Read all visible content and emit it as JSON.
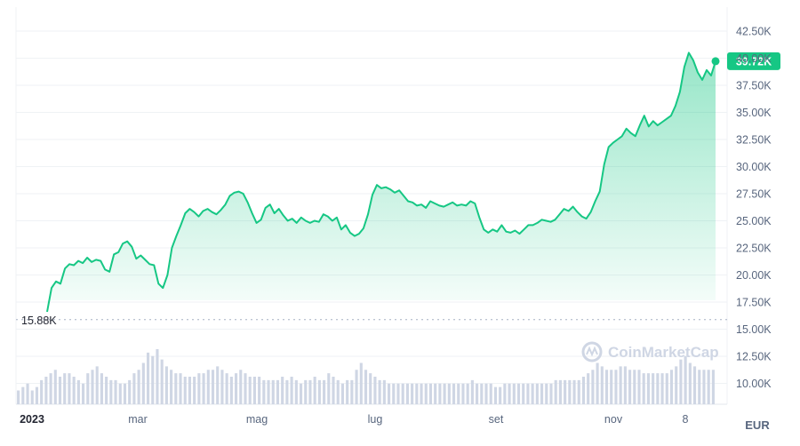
{
  "watermark": "CoinMarketCap",
  "currency": "EUR",
  "colors": {
    "line": "#16c784",
    "volume": "#cfd6e4",
    "baseline": "#a6b0c3",
    "grid": "#eff2f5",
    "badge": "#16c784"
  },
  "chart_data": {
    "type": "area",
    "x_tick_labels": [
      "2023",
      "mar",
      "mag",
      "lug",
      "set",
      "nov",
      "8"
    ],
    "y_tick_labels": [
      "42.50K",
      "40.00K",
      "37.50K",
      "35.00K",
      "32.50K",
      "30.00K",
      "27.50K",
      "25.00K",
      "22.50K",
      "20.00K",
      "17.50K",
      "15.00K",
      "12.50K",
      "10.00K"
    ],
    "ylim": [
      8000,
      44000
    ],
    "baseline": {
      "value": 15880,
      "label": "15.88K"
    },
    "last_price": {
      "value": 39720,
      "label": "39.72K"
    },
    "series": [
      {
        "values": [
          16600,
          18800,
          19400,
          19200,
          20600,
          21000,
          20900,
          21300,
          21100,
          21600,
          21200,
          21400,
          21300,
          20500,
          20300,
          21900,
          22100,
          22900,
          23100,
          22600,
          21500,
          21800,
          21400,
          21000,
          20900,
          19200,
          18800,
          20000,
          22500,
          23600,
          24600,
          25700,
          26100,
          25800,
          25400,
          25900,
          26100,
          25800,
          25600,
          26000,
          26500,
          27300,
          27600,
          27700,
          27500,
          26700,
          25700,
          24800,
          25100,
          26200,
          26500,
          25700,
          26100,
          25500,
          25000,
          25200,
          24800,
          25300,
          25000,
          24800,
          25000,
          24900,
          25600,
          25400,
          25000,
          25300,
          24200,
          24600,
          23900,
          23600,
          23800,
          24300,
          25600,
          27400,
          28300,
          28000,
          28100,
          27900,
          27600,
          27800,
          27300,
          26800,
          26700,
          26400,
          26500,
          26200,
          26800,
          26600,
          26400,
          26300,
          26500,
          26700,
          26400,
          26500,
          26400,
          26800,
          26600,
          25300,
          24200,
          23900,
          24200,
          24000,
          24600,
          24000,
          23900,
          24100,
          23800,
          24200,
          24600,
          24600,
          24800,
          25100,
          25000,
          24900,
          25100,
          25600,
          26100,
          25900,
          26300,
          25800,
          25400,
          25200,
          25800,
          26800,
          27700,
          30200,
          31800,
          32200,
          32500,
          32800,
          33500,
          33100,
          32800,
          33800,
          34700,
          33700,
          34200,
          33800,
          34100,
          34400,
          34700,
          35600,
          36900,
          39200,
          40500,
          39800,
          38700,
          38000,
          38900,
          38400,
          39720
        ]
      }
    ],
    "volume": [
      4,
      5,
      6,
      4,
      5,
      7,
      8,
      9,
      10,
      8,
      9,
      9,
      8,
      7,
      6,
      9,
      10,
      11,
      9,
      8,
      7,
      7,
      6,
      6,
      7,
      9,
      10,
      12,
      15,
      14,
      16,
      13,
      11,
      10,
      9,
      9,
      8,
      8,
      8,
      9,
      9,
      10,
      10,
      11,
      10,
      9,
      8,
      9,
      10,
      9,
      8,
      8,
      8,
      7,
      7,
      7,
      7,
      8,
      7,
      8,
      7,
      6,
      7,
      7,
      8,
      7,
      7,
      9,
      8,
      7,
      6,
      7,
      7,
      10,
      12,
      10,
      9,
      8,
      7,
      7,
      6,
      6,
      6,
      6,
      6,
      6,
      6,
      6,
      6,
      6,
      6,
      6,
      6,
      6,
      6,
      6,
      6,
      6,
      7,
      6,
      6,
      6,
      6,
      5,
      5,
      6,
      6,
      6,
      6,
      6,
      6,
      6,
      6,
      6,
      6,
      6,
      7,
      7,
      7,
      7,
      7,
      7,
      8,
      9,
      10,
      12,
      11,
      10,
      10,
      10,
      11,
      11,
      10,
      10,
      10,
      9,
      9,
      9,
      9,
      9,
      9,
      10,
      11,
      13,
      14,
      12,
      11,
      10,
      10,
      10,
      10
    ]
  }
}
